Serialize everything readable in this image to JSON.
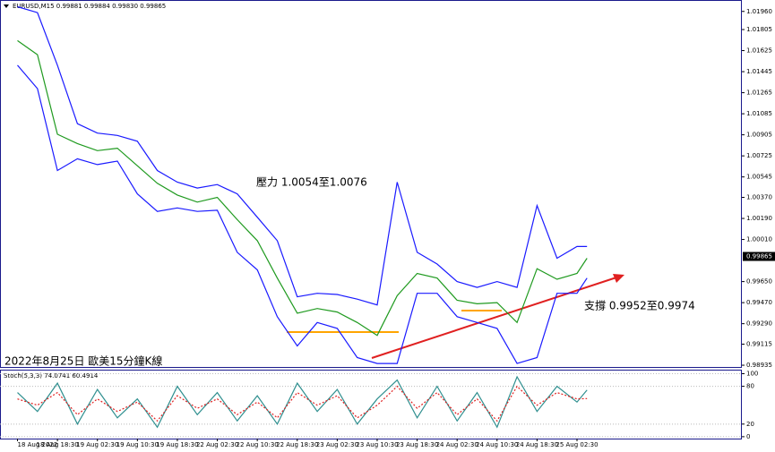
{
  "chart_data": [
    {
      "type": "line",
      "title": "EURUSD,M15 0.99881 0.99884 0.99830 0.99865",
      "annotations": [
        "壓力 1.0054至1.0076",
        "支撐 0.9952至0.9974",
        "2022年8月25日 歐美15分鐘K線"
      ],
      "last_price": {
        "value": 0.99865,
        "label": "0.99865"
      },
      "x": [
        0,
        16,
        32,
        48,
        64,
        80,
        96,
        112,
        128,
        144,
        160,
        176,
        192,
        208,
        224,
        240,
        256,
        272,
        288,
        304,
        320,
        336,
        352,
        368,
        384,
        400,
        416,
        432,
        448,
        456
      ],
      "series": [
        {
          "color": "#1f9a1f",
          "values": [
            1.0171,
            1.0159,
            1.0091,
            1.0083,
            1.0077,
            1.0079,
            1.0064,
            1.0049,
            1.0039,
            1.0033,
            1.0037,
            1.0018,
            1.0,
            0.9968,
            0.9938,
            0.9942,
            0.9939,
            0.993,
            0.9919,
            0.9953,
            0.9972,
            0.9968,
            0.9949,
            0.9946,
            0.9947,
            0.993,
            0.9976,
            0.9967,
            0.9972,
            0.9985
          ]
        },
        {
          "color": "#1a1aff",
          "values": [
            1.02,
            1.0195,
            1.015,
            1.01,
            1.0092,
            1.009,
            1.0085,
            1.006,
            1.005,
            1.0045,
            1.0048,
            1.004,
            1.002,
            1.0,
            0.9952,
            0.9955,
            0.9954,
            0.995,
            0.9945,
            1.005,
            0.999,
            0.998,
            0.9965,
            0.996,
            0.9965,
            0.996,
            1.003,
            0.9985,
            0.9995,
            0.9995
          ]
        },
        {
          "color": "#1a1aff",
          "values": [
            1.015,
            1.013,
            1.006,
            1.007,
            1.0065,
            1.0068,
            1.004,
            1.0025,
            1.0028,
            1.0025,
            1.0026,
            0.999,
            0.9975,
            0.9935,
            0.991,
            0.993,
            0.9925,
            0.99,
            0.9895,
            0.9895,
            0.9955,
            0.9955,
            0.9935,
            0.993,
            0.9925,
            0.9895,
            0.99,
            0.9955,
            0.9955,
            0.9968
          ]
        }
      ],
      "xlim": [
        -14,
        580
      ],
      "xticks": [
        {
          "value": 0,
          "label": "18 Aug 2022"
        },
        {
          "value": 32,
          "label": "18 Aug 18:30"
        },
        {
          "value": 64,
          "label": "19 Aug 02:30"
        },
        {
          "value": 96,
          "label": "19 Aug 10:30"
        },
        {
          "value": 128,
          "label": "19 Aug 18:30"
        },
        {
          "value": 160,
          "label": "22 Aug 02:30"
        },
        {
          "value": 192,
          "label": "22 Aug 10:30"
        },
        {
          "value": 224,
          "label": "22 Aug 18:30"
        },
        {
          "value": 256,
          "label": "23 Aug 02:30"
        },
        {
          "value": 288,
          "label": "23 Aug 10:30"
        },
        {
          "value": 320,
          "label": "23 Aug 18:30"
        },
        {
          "value": 352,
          "label": "24 Aug 02:30"
        },
        {
          "value": 384,
          "label": "24 Aug 10:30"
        },
        {
          "value": 416,
          "label": "24 Aug 18:30"
        },
        {
          "value": 448,
          "label": "25 Aug 02:30"
        }
      ],
      "ylim": [
        0.9892,
        1.0205
      ],
      "yticks": [
        {
          "value": 1.0196,
          "label": "1.01960"
        },
        {
          "value": 1.01805,
          "label": "1.01805"
        },
        {
          "value": 1.01625,
          "label": "1.01625"
        },
        {
          "value": 1.01445,
          "label": "1.01445"
        },
        {
          "value": 1.01265,
          "label": "1.01265"
        },
        {
          "value": 1.01085,
          "label": "1.01085"
        },
        {
          "value": 1.00905,
          "label": "1.00905"
        },
        {
          "value": 1.00725,
          "label": "1.00725"
        },
        {
          "value": 1.00545,
          "label": "1.00545"
        },
        {
          "value": 1.0037,
          "label": "1.00370"
        },
        {
          "value": 1.0019,
          "label": "1.00190"
        },
        {
          "value": 1.0001,
          "label": "1.00010"
        },
        {
          "value": 0.9965,
          "label": "0.99650"
        },
        {
          "value": 0.9947,
          "label": "0.99470"
        },
        {
          "value": 0.9929,
          "label": "0.99290"
        },
        {
          "value": 0.99115,
          "label": "0.99115"
        },
        {
          "value": 0.98935,
          "label": "0.98935"
        }
      ]
    },
    {
      "type": "line",
      "title": "Stoch(5,3,3) 74.0741 60.4914",
      "x": [
        0,
        16,
        32,
        48,
        64,
        80,
        96,
        112,
        128,
        144,
        160,
        176,
        192,
        208,
        224,
        240,
        256,
        272,
        288,
        304,
        320,
        336,
        352,
        368,
        384,
        400,
        416,
        432,
        448,
        456
      ],
      "series": [
        {
          "color": "#2f8f8f",
          "values": [
            70,
            40,
            85,
            20,
            75,
            30,
            60,
            15,
            80,
            35,
            70,
            25,
            65,
            20,
            85,
            40,
            75,
            20,
            60,
            90,
            30,
            80,
            25,
            70,
            15,
            95,
            40,
            80,
            55,
            74.0741
          ]
        },
        {
          "color": "#e02020",
          "dashed": true,
          "values": [
            60,
            50,
            70,
            35,
            60,
            40,
            55,
            25,
            65,
            45,
            60,
            35,
            55,
            30,
            70,
            50,
            65,
            30,
            50,
            80,
            45,
            70,
            35,
            60,
            25,
            80,
            50,
            70,
            60,
            60.4914
          ]
        }
      ],
      "xlim": [
        -14,
        580
      ],
      "ylim": [
        -3,
        105
      ],
      "yticks": [
        100,
        80,
        20,
        0
      ]
    }
  ]
}
